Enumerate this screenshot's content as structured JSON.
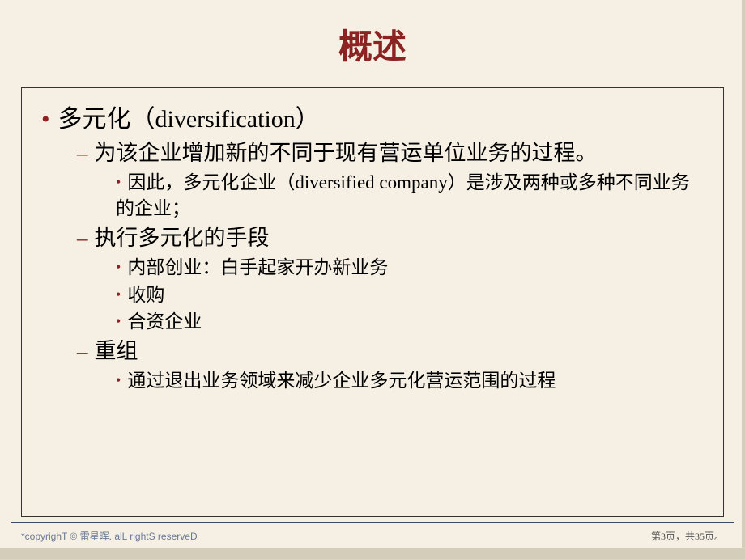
{
  "title": "概述",
  "colors": {
    "background": "#f5f0e3",
    "title_color": "#8b2323",
    "bullet_color": "#8b2323",
    "text_color": "#000000",
    "footer_color": "#6a7a95",
    "border_color": "#333333",
    "footer_line_color": "#3a4a6a"
  },
  "fontsize": {
    "title": 42,
    "level1": 30,
    "level2": 27,
    "level3": 23,
    "footer": 12
  },
  "content": {
    "l1_1": "多元化（diversification）",
    "l2_1": "为该企业增加新的不同于现有营运单位业务的过程。",
    "l3_1": "因此，多元化企业（diversified company）是涉及两种或多种不同业务的企业；",
    "l2_2": "执行多元化的手段",
    "l3_2": "内部创业：白手起家开办新业务",
    "l3_3": "收购",
    "l3_4": "合资企业",
    "l2_3": "重组",
    "l3_5": "通过退出业务领域来减少企业多元化营运范围的过程"
  },
  "footer": {
    "left_prefix": "*copyrighT © ",
    "left_name": "雷星晖",
    "left_suffix": ". alL rightS reserveD",
    "right": "第3页，共35页。"
  }
}
